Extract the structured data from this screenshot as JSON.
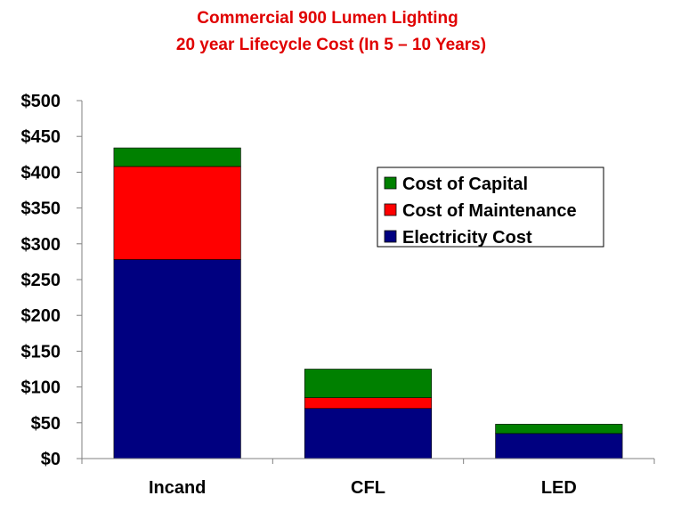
{
  "chart_data": {
    "type": "bar",
    "stacked": true,
    "title": [
      "Commercial 900 Lumen Lighting",
      "20 year Lifecycle Cost (In 5 – 10 Years)"
    ],
    "xlabel": "",
    "ylabel": "",
    "categories": [
      "Incand",
      "CFL",
      "LED"
    ],
    "series": [
      {
        "name": "Electricity Cost",
        "color": "#000080",
        "values": [
          278,
          70,
          35
        ]
      },
      {
        "name": "Cost of Maintenance",
        "color": "#ff0000",
        "values": [
          130,
          15,
          0
        ]
      },
      {
        "name": "Cost of Capital",
        "color": "#008000",
        "values": [
          26,
          40,
          13
        ]
      }
    ],
    "ylim": [
      0,
      500
    ],
    "yticks": [
      0,
      50,
      100,
      150,
      200,
      250,
      300,
      350,
      400,
      450,
      500
    ],
    "ytick_labels": [
      "$0",
      "$50",
      "$100",
      "$150",
      "$200",
      "$250",
      "$300",
      "$350",
      "$400",
      "$450",
      "$500"
    ],
    "legend": {
      "position": "upper-right",
      "entries": [
        "Cost of Capital",
        "Cost of Maintenance",
        "Electricity Cost"
      ]
    },
    "grid": false
  }
}
